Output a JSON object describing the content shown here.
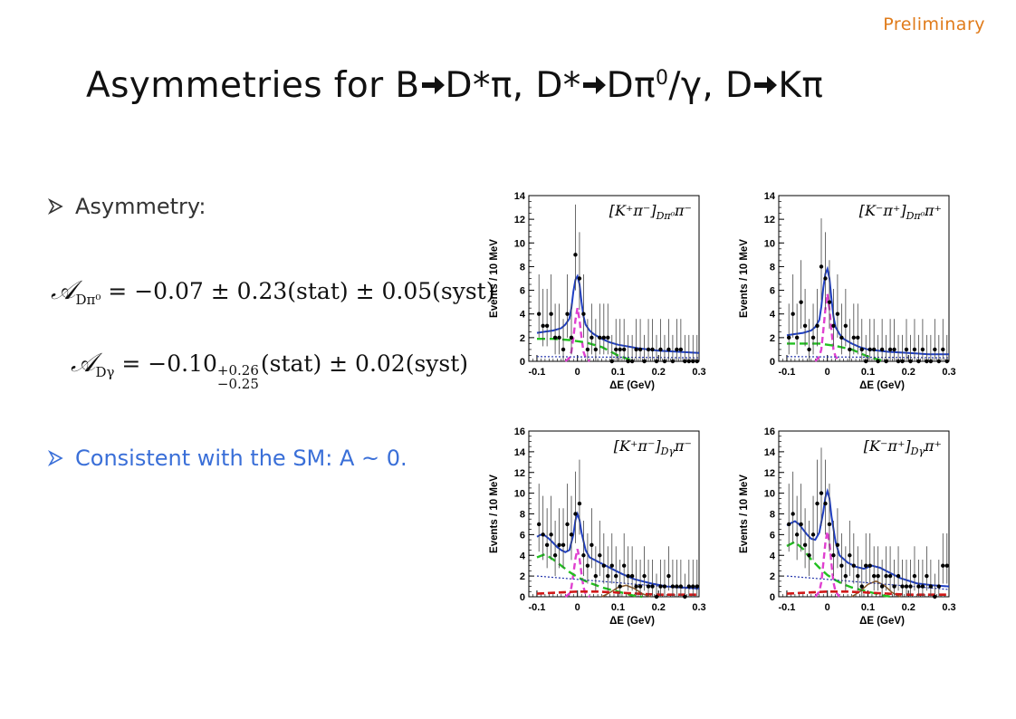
{
  "slide": {
    "tag": "Preliminary",
    "title_parts": [
      "Asymmetries for B",
      "D*π, D*",
      "Dπ",
      "0",
      "/γ, D",
      "Kπ"
    ],
    "bullets": [
      "Asymmetry:",
      "Consistent with the SM: A ~ 0."
    ],
    "eq1": {
      "symbol": "𝒜",
      "sub": "Dπ⁰",
      "rhs": "= −0.07 ± 0.23(stat) ± 0.05(syst)"
    },
    "eq2": {
      "symbol": "𝒜",
      "sub": "Dγ",
      "lhs": "= −0.10",
      "err_up": "+0.26",
      "err_down": "−0.25",
      "rhs": "(stat) ± 0.02(syst)"
    }
  },
  "colors": {
    "tag": "#e07b1a",
    "bullet_blue": "#3a6fd8",
    "fit": "#1f3fc4",
    "signal": "#e040d0",
    "bkg_green": "#22c020",
    "bkg_red": "#d01818",
    "bkg_brown": "#8b5a2b",
    "dotted": "#2233aa"
  },
  "chart_data": [
    {
      "type": "scatter",
      "label": "[K⁺π⁻]_{Dπ⁰}π⁻",
      "xlabel": "ΔE (GeV)",
      "ylabel": "Events / 10 MeV",
      "xlim": [
        -0.12,
        0.3
      ],
      "ylim": [
        0,
        14
      ],
      "xticks": [
        "-0.1",
        "0",
        "0.1",
        "0.2",
        "0.3"
      ],
      "yticks": [
        "0",
        "2",
        "4",
        "6",
        "8",
        "10",
        "12",
        "14"
      ],
      "x": [
        -0.095,
        -0.085,
        -0.075,
        -0.065,
        -0.055,
        -0.045,
        -0.035,
        -0.025,
        -0.015,
        -0.005,
        0.005,
        0.015,
        0.025,
        0.035,
        0.045,
        0.055,
        0.065,
        0.075,
        0.085,
        0.095,
        0.105,
        0.115,
        0.125,
        0.135,
        0.145,
        0.155,
        0.165,
        0.175,
        0.185,
        0.195,
        0.205,
        0.215,
        0.225,
        0.235,
        0.245,
        0.255,
        0.265,
        0.275,
        0.285,
        0.295
      ],
      "y": [
        4,
        3,
        3,
        4,
        2,
        2,
        1,
        4,
        2,
        9,
        7,
        4,
        1,
        2,
        1,
        2,
        2,
        2,
        0,
        1,
        1,
        1,
        0,
        0,
        1,
        1,
        0,
        1,
        1,
        0,
        1,
        0,
        1,
        0,
        1,
        1,
        0,
        0,
        0,
        0
      ],
      "series": [
        {
          "name": "fit",
          "x": [
            -0.1,
            -0.08,
            -0.06,
            -0.04,
            -0.03,
            -0.02,
            -0.015,
            -0.01,
            -0.005,
            0,
            0.005,
            0.01,
            0.015,
            0.02,
            0.03,
            0.04,
            0.06,
            0.08,
            0.1,
            0.15,
            0.2,
            0.25,
            0.3
          ],
          "values": [
            2.4,
            2.5,
            2.6,
            2.8,
            3.1,
            3.6,
            4.5,
            5.9,
            6.9,
            7.2,
            6.5,
            5.0,
            3.8,
            3.1,
            2.6,
            2.3,
            1.9,
            1.6,
            1.4,
            1.1,
            0.9,
            0.8,
            0.7
          ]
        },
        {
          "name": "signal",
          "x": [
            -0.03,
            -0.02,
            -0.015,
            -0.01,
            -0.005,
            0,
            0.005,
            0.01,
            0.015,
            0.02,
            0.03
          ],
          "values": [
            0,
            0.3,
            0.8,
            2.0,
            3.5,
            4.5,
            3.5,
            2.0,
            0.8,
            0.3,
            0
          ]
        },
        {
          "name": "green",
          "x": [
            -0.1,
            -0.06,
            -0.02,
            0.02,
            0.06,
            0.1,
            0.14
          ],
          "values": [
            1.9,
            1.9,
            1.8,
            1.6,
            1.2,
            0.5,
            0
          ]
        },
        {
          "name": "dotted",
          "x": [
            -0.1,
            0.3
          ],
          "values": [
            0.4,
            0.3
          ]
        }
      ]
    },
    {
      "type": "scatter",
      "label": "[K⁻π⁺]_{Dπ⁰}π⁺",
      "xlabel": "ΔE (GeV)",
      "ylabel": "Events / 10 MeV",
      "xlim": [
        -0.12,
        0.3
      ],
      "ylim": [
        0,
        14
      ],
      "xticks": [
        "-0.1",
        "0",
        "0.1",
        "0.2",
        "0.3"
      ],
      "yticks": [
        "0",
        "2",
        "4",
        "6",
        "8",
        "10",
        "12",
        "14"
      ],
      "x": [
        -0.095,
        -0.085,
        -0.075,
        -0.065,
        -0.055,
        -0.045,
        -0.035,
        -0.025,
        -0.015,
        -0.005,
        0.005,
        0.015,
        0.025,
        0.035,
        0.045,
        0.055,
        0.065,
        0.075,
        0.085,
        0.095,
        0.105,
        0.115,
        0.125,
        0.135,
        0.145,
        0.155,
        0.165,
        0.175,
        0.185,
        0.195,
        0.205,
        0.215,
        0.225,
        0.235,
        0.245,
        0.255,
        0.265,
        0.275,
        0.285,
        0.295
      ],
      "y": [
        2,
        4,
        2,
        5,
        3,
        1,
        2,
        3,
        8,
        7,
        5,
        3,
        4,
        2,
        3,
        1,
        2,
        2,
        1,
        0,
        1,
        1,
        0,
        1,
        0,
        1,
        1,
        0,
        0,
        1,
        0,
        1,
        0,
        1,
        0,
        0,
        1,
        0,
        1,
        0
      ],
      "series": [
        {
          "name": "fit",
          "x": [
            -0.1,
            -0.08,
            -0.06,
            -0.04,
            -0.03,
            -0.02,
            -0.015,
            -0.01,
            -0.005,
            0,
            0.005,
            0.01,
            0.015,
            0.02,
            0.03,
            0.04,
            0.06,
            0.08,
            0.1,
            0.15,
            0.2,
            0.25,
            0.3
          ],
          "values": [
            2.2,
            2.3,
            2.4,
            2.6,
            2.9,
            3.5,
            4.6,
            6.2,
            7.4,
            7.8,
            7.0,
            5.3,
            3.8,
            2.9,
            2.3,
            1.9,
            1.5,
            1.2,
            1.0,
            0.8,
            0.7,
            0.6,
            0.6
          ]
        },
        {
          "name": "signal",
          "x": [
            -0.03,
            -0.02,
            -0.015,
            -0.01,
            -0.005,
            0,
            0.005,
            0.01,
            0.015,
            0.02,
            0.03
          ],
          "values": [
            0,
            0.4,
            1.0,
            2.6,
            4.4,
            5.7,
            4.4,
            2.6,
            1.0,
            0.4,
            0
          ]
        },
        {
          "name": "green",
          "x": [
            -0.1,
            -0.06,
            -0.02,
            0.02,
            0.06,
            0.1,
            0.14
          ],
          "values": [
            1.5,
            1.5,
            1.5,
            1.3,
            1.0,
            0.4,
            0
          ]
        },
        {
          "name": "dotted",
          "x": [
            -0.1,
            0.3
          ],
          "values": [
            0.4,
            0.3
          ]
        }
      ]
    },
    {
      "type": "scatter",
      "label": "[K⁺π⁻]_{Dγ}π⁻",
      "xlabel": "ΔE (GeV)",
      "ylabel": "Events / 10 MeV",
      "xlim": [
        -0.12,
        0.3
      ],
      "ylim": [
        0,
        16
      ],
      "xticks": [
        "-0.1",
        "0",
        "0.1",
        "0.2",
        "0.3"
      ],
      "yticks": [
        "0",
        "2",
        "4",
        "6",
        "8",
        "10",
        "12",
        "14",
        "16"
      ],
      "x": [
        -0.095,
        -0.085,
        -0.075,
        -0.065,
        -0.055,
        -0.045,
        -0.035,
        -0.025,
        -0.015,
        -0.005,
        0.005,
        0.015,
        0.025,
        0.035,
        0.045,
        0.055,
        0.065,
        0.075,
        0.085,
        0.095,
        0.105,
        0.115,
        0.125,
        0.135,
        0.145,
        0.155,
        0.165,
        0.175,
        0.185,
        0.195,
        0.205,
        0.215,
        0.225,
        0.235,
        0.245,
        0.255,
        0.265,
        0.275,
        0.285,
        0.295
      ],
      "y": [
        7,
        6,
        5,
        6,
        4,
        5,
        5,
        7,
        6,
        8,
        9,
        4,
        3,
        5,
        2,
        4,
        3,
        2,
        3,
        2,
        1,
        3,
        2,
        2,
        1,
        1,
        2,
        1,
        1,
        0,
        1,
        1,
        2,
        1,
        1,
        1,
        0,
        1,
        1,
        1
      ],
      "series": [
        {
          "name": "fit",
          "x": [
            -0.1,
            -0.09,
            -0.08,
            -0.07,
            -0.06,
            -0.05,
            -0.04,
            -0.03,
            -0.02,
            -0.01,
            -0.005,
            0,
            0.005,
            0.01,
            0.02,
            0.03,
            0.05,
            0.07,
            0.09,
            0.11,
            0.14,
            0.18,
            0.22,
            0.26,
            0.3
          ],
          "values": [
            5.8,
            6.0,
            5.9,
            5.6,
            5.2,
            4.8,
            4.5,
            4.3,
            4.5,
            6.0,
            7.4,
            8.0,
            7.4,
            6.2,
            4.5,
            3.8,
            3.4,
            3.0,
            2.6,
            2.2,
            1.7,
            1.3,
            1.0,
            0.9,
            0.8
          ]
        },
        {
          "name": "signal",
          "x": [
            -0.03,
            -0.02,
            -0.015,
            -0.01,
            -0.005,
            0,
            0.005,
            0.01,
            0.015,
            0.02,
            0.03
          ],
          "values": [
            0,
            0.3,
            0.9,
            2.2,
            3.7,
            4.6,
            3.7,
            2.2,
            0.9,
            0.3,
            0
          ]
        },
        {
          "name": "green",
          "x": [
            -0.1,
            -0.08,
            -0.06,
            -0.04,
            -0.02,
            0,
            0.02,
            0.04,
            0.06,
            0.08,
            0.1,
            0.12,
            0.14,
            0.16
          ],
          "values": [
            3.8,
            4.1,
            3.6,
            3.0,
            2.4,
            1.9,
            1.5,
            1.2,
            0.9,
            0.7,
            0.5,
            0.3,
            0.1,
            0
          ]
        },
        {
          "name": "brown",
          "x": [
            0.06,
            0.08,
            0.1,
            0.12,
            0.14,
            0.16,
            0.18
          ],
          "values": [
            0,
            0.4,
            0.9,
            1.1,
            0.8,
            0.3,
            0
          ]
        },
        {
          "name": "red",
          "x": [
            -0.1,
            -0.05,
            0,
            0.05,
            0.1,
            0.15,
            0.2,
            0.25,
            0.3
          ],
          "values": [
            0.3,
            0.4,
            0.5,
            0.5,
            0.4,
            0.3,
            0.2,
            0.2,
            0.2
          ]
        },
        {
          "name": "dotted",
          "x": [
            -0.1,
            0.3
          ],
          "values": [
            2.0,
            0.7
          ]
        }
      ]
    },
    {
      "type": "scatter",
      "label": "[K⁻π⁺]_{Dγ}π⁺",
      "xlabel": "ΔE (GeV)",
      "ylabel": "Events / 10 MeV",
      "xlim": [
        -0.12,
        0.3
      ],
      "ylim": [
        0,
        16
      ],
      "xticks": [
        "-0.1",
        "0",
        "0.1",
        "0.2",
        "0.3"
      ],
      "yticks": [
        "0",
        "2",
        "4",
        "6",
        "8",
        "10",
        "12",
        "14",
        "16"
      ],
      "x": [
        -0.095,
        -0.085,
        -0.075,
        -0.065,
        -0.055,
        -0.045,
        -0.035,
        -0.025,
        -0.015,
        -0.005,
        0.005,
        0.015,
        0.025,
        0.035,
        0.045,
        0.055,
        0.065,
        0.075,
        0.085,
        0.095,
        0.105,
        0.115,
        0.125,
        0.135,
        0.145,
        0.155,
        0.165,
        0.175,
        0.185,
        0.195,
        0.205,
        0.215,
        0.225,
        0.235,
        0.245,
        0.255,
        0.265,
        0.275,
        0.285,
        0.295
      ],
      "y": [
        7,
        8,
        6,
        7,
        5,
        4,
        6,
        9,
        10,
        9,
        7,
        4,
        5,
        3,
        2,
        4,
        3,
        2,
        1,
        3,
        3,
        2,
        2,
        1,
        2,
        2,
        1,
        2,
        1,
        1,
        1,
        2,
        1,
        1,
        2,
        1,
        0,
        1,
        3,
        3
      ],
      "series": [
        {
          "name": "fit",
          "x": [
            -0.1,
            -0.09,
            -0.08,
            -0.07,
            -0.06,
            -0.05,
            -0.04,
            -0.03,
            -0.02,
            -0.01,
            -0.005,
            0,
            0.005,
            0.01,
            0.02,
            0.03,
            0.05,
            0.07,
            0.09,
            0.11,
            0.13,
            0.15,
            0.18,
            0.22,
            0.26,
            0.3
          ],
          "values": [
            6.9,
            7.1,
            7.3,
            7.0,
            6.5,
            6.0,
            5.6,
            5.5,
            6.2,
            8.2,
            9.6,
            10.2,
            9.5,
            7.8,
            5.3,
            4.0,
            3.3,
            2.9,
            2.7,
            3.0,
            2.8,
            2.4,
            1.8,
            1.3,
            1.1,
            1.0
          ]
        },
        {
          "name": "signal",
          "x": [
            -0.03,
            -0.02,
            -0.015,
            -0.01,
            -0.005,
            0,
            0.005,
            0.01,
            0.015,
            0.02,
            0.03
          ],
          "values": [
            0,
            0.5,
            1.4,
            3.2,
            5.2,
            6.3,
            5.2,
            3.2,
            1.4,
            0.5,
            0
          ]
        },
        {
          "name": "green",
          "x": [
            -0.1,
            -0.08,
            -0.06,
            -0.04,
            -0.02,
            0,
            0.02,
            0.04,
            0.06,
            0.08,
            0.1,
            0.12,
            0.14,
            0.16
          ],
          "values": [
            4.9,
            5.3,
            4.6,
            3.6,
            2.8,
            2.1,
            1.6,
            1.2,
            0.9,
            0.7,
            0.5,
            0.3,
            0.1,
            0
          ]
        },
        {
          "name": "brown",
          "x": [
            0.06,
            0.08,
            0.1,
            0.12,
            0.14,
            0.16,
            0.18
          ],
          "values": [
            0,
            0.5,
            1.2,
            1.5,
            1.1,
            0.4,
            0
          ]
        },
        {
          "name": "red",
          "x": [
            -0.1,
            -0.05,
            0,
            0.05,
            0.1,
            0.15,
            0.2,
            0.25,
            0.3
          ],
          "values": [
            0.3,
            0.4,
            0.5,
            0.5,
            0.4,
            0.3,
            0.2,
            0.2,
            0.2
          ]
        },
        {
          "name": "dotted",
          "x": [
            -0.1,
            0.3
          ],
          "values": [
            2.0,
            0.7
          ]
        }
      ]
    }
  ]
}
